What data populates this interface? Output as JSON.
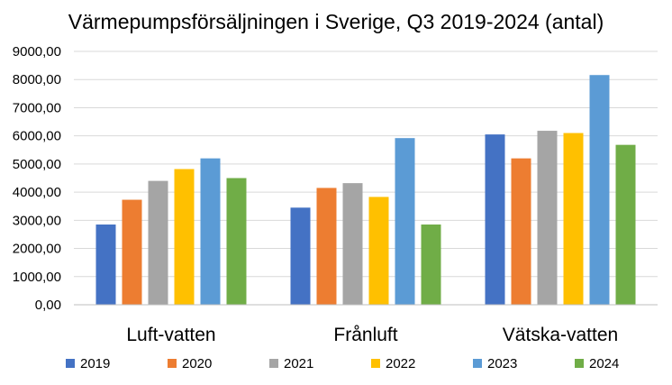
{
  "chart_data": {
    "type": "bar",
    "title": "Värmepumpsförsäljningen i Sverige, Q3 2019-2024 (antal)",
    "xlabel": "",
    "ylabel": "",
    "ylim": [
      0,
      9000
    ],
    "y_ticks": [
      {
        "value": 0,
        "label": "0,00"
      },
      {
        "value": 1000,
        "label": "1000,00"
      },
      {
        "value": 2000,
        "label": "2000,00"
      },
      {
        "value": 3000,
        "label": "3000,00"
      },
      {
        "value": 4000,
        "label": "4000,00"
      },
      {
        "value": 5000,
        "label": "5000,00"
      },
      {
        "value": 6000,
        "label": "6000,00"
      },
      {
        "value": 7000,
        "label": "7000,00"
      },
      {
        "value": 8000,
        "label": "8000,00"
      },
      {
        "value": 9000,
        "label": "9000,00"
      }
    ],
    "grid": true,
    "legend": "bottom",
    "categories": [
      "Luft-vatten",
      "Frånluft",
      "Vätska-vatten"
    ],
    "series": [
      {
        "name": "2019",
        "color": "#4472c4",
        "values": [
          2850,
          3450,
          6050
        ]
      },
      {
        "name": "2020",
        "color": "#ed7d31",
        "values": [
          3730,
          4150,
          5200
        ]
      },
      {
        "name": "2021",
        "color": "#a5a5a5",
        "values": [
          4400,
          4320,
          6180
        ]
      },
      {
        "name": "2022",
        "color": "#ffc000",
        "values": [
          4820,
          3830,
          6100
        ]
      },
      {
        "name": "2023",
        "color": "#5b9bd5",
        "values": [
          5200,
          5920,
          8160
        ]
      },
      {
        "name": "2024",
        "color": "#70ad47",
        "values": [
          4500,
          2850,
          5680
        ]
      }
    ]
  }
}
